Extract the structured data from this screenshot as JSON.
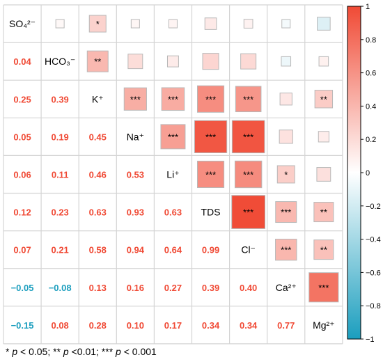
{
  "chart_data": {
    "type": "heatmap",
    "variables": [
      "SO₄²⁻",
      "HCO₃⁻",
      "K⁺",
      "Na⁺",
      "Li⁺",
      "TDS",
      "Cl⁻",
      "Ca²⁺",
      "Mg²⁺"
    ],
    "matrix": [
      [
        1.0,
        0.04,
        0.25,
        0.05,
        0.06,
        0.12,
        0.07,
        -0.05,
        -0.15
      ],
      [
        0.04,
        1.0,
        0.39,
        0.19,
        0.11,
        0.23,
        0.21,
        -0.08,
        0.08
      ],
      [
        0.25,
        0.39,
        1.0,
        0.45,
        0.46,
        0.63,
        0.58,
        0.13,
        0.28
      ],
      [
        0.05,
        0.19,
        0.45,
        1.0,
        0.53,
        0.93,
        0.94,
        0.16,
        0.1
      ],
      [
        0.06,
        0.11,
        0.46,
        0.53,
        1.0,
        0.63,
        0.64,
        0.27,
        0.17
      ],
      [
        0.12,
        0.23,
        0.63,
        0.93,
        0.63,
        1.0,
        0.99,
        0.39,
        0.34
      ],
      [
        0.07,
        0.21,
        0.58,
        0.94,
        0.64,
        0.99,
        1.0,
        0.4,
        0.34
      ],
      [
        -0.05,
        -0.08,
        0.13,
        0.16,
        0.27,
        0.39,
        0.4,
        1.0,
        0.77
      ],
      [
        -0.15,
        0.08,
        0.28,
        0.1,
        0.17,
        0.34,
        0.34,
        0.77,
        1.0
      ]
    ],
    "lower_labels": [
      [
        "0.04"
      ],
      [
        "0.25",
        "0.39"
      ],
      [
        "0.05",
        "0.19",
        "0.45"
      ],
      [
        "0.06",
        "0.11",
        "0.46",
        "0.53"
      ],
      [
        "0.12",
        "0.23",
        "0.63",
        "0.93",
        "0.63"
      ],
      [
        "0.07",
        "0.21",
        "0.58",
        "0.94",
        "0.64",
        "0.99"
      ],
      [
        "−0.05",
        "−0.08",
        "0.13",
        "0.16",
        "0.27",
        "0.39",
        "0.40"
      ],
      [
        "−0.15",
        "0.08",
        "0.28",
        "0.10",
        "0.17",
        "0.34",
        "0.34",
        "0.77"
      ]
    ],
    "significance": [
      [
        "",
        "",
        "*",
        "",
        "",
        "",
        "",
        "",
        ""
      ],
      [
        "",
        "",
        "**",
        "",
        "",
        "",
        "",
        "",
        ""
      ],
      [
        "",
        "",
        "",
        "***",
        "***",
        "***",
        "***",
        "",
        "**"
      ],
      [
        "",
        "",
        "",
        "",
        "***",
        "***",
        "***",
        "",
        ""
      ],
      [
        "",
        "",
        "",
        "",
        "",
        "***",
        "***",
        "*",
        ""
      ],
      [
        "",
        "",
        "",
        "",
        "",
        "",
        "***",
        "***",
        "**"
      ],
      [
        "",
        "",
        "",
        "",
        "",
        "",
        "",
        "***",
        "**"
      ],
      [
        "",
        "",
        "",
        "",
        "",
        "",
        "",
        "",
        "***"
      ],
      [
        "",
        "",
        "",
        "",
        "",
        "",
        "",
        "",
        ""
      ]
    ],
    "colorbar": {
      "range": [
        -1,
        1
      ],
      "ticks": [
        "1",
        "0.8",
        "0.6",
        "0.4",
        "0.2",
        "0",
        "−0.2",
        "−0.4",
        "−0.6",
        "−0.8",
        "−1"
      ],
      "colors": {
        "positive": "#f04a35",
        "zero": "#ffffff",
        "negative": "#1b9ebe"
      }
    },
    "grid": true
  },
  "footnote": {
    "s1": "*",
    "p1": "p",
    "t1": " < 0.05; ** ",
    "p2": "p",
    "t2": " <0.01; *** ",
    "p3": "p",
    "t3": " < 0.001"
  }
}
